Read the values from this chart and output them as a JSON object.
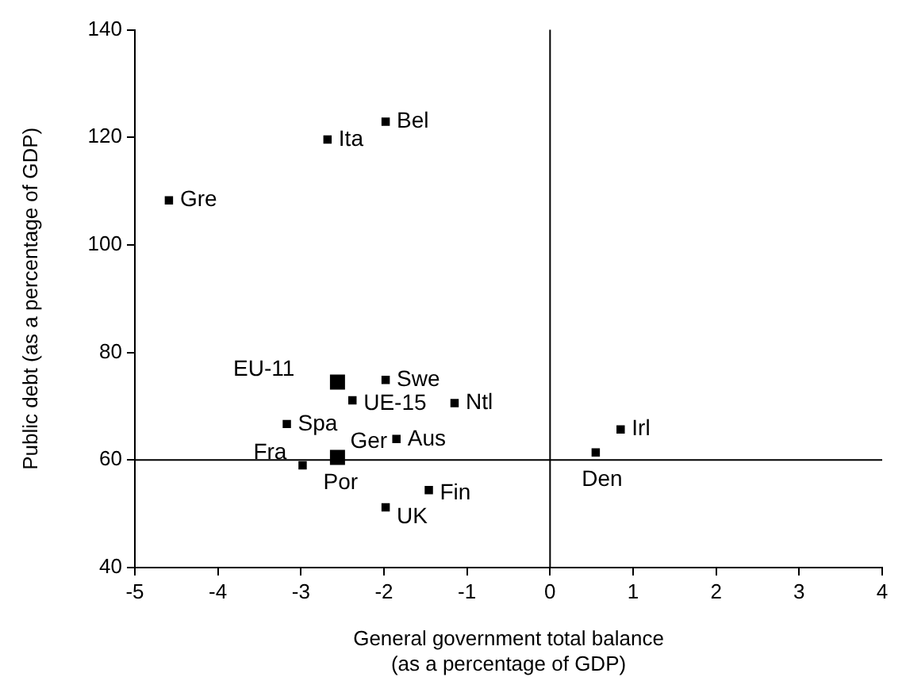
{
  "chart_data": {
    "type": "scatter",
    "xlabel": "General government total balance\n(as a percentage of GDP)",
    "ylabel": "Public debt (as a percentage of GDP)",
    "xlim": [
      -5,
      4
    ],
    "xticks": [
      -5,
      -4,
      -3,
      -2,
      -1,
      0,
      1,
      2,
      3,
      4
    ],
    "ylim": [
      40,
      140
    ],
    "yticks": [
      40,
      60,
      80,
      100,
      120,
      140
    ],
    "grid": false,
    "legend": false,
    "marker": "square",
    "series": [
      {
        "color": "#000000",
        "x": [
          -4.59,
          -2.68,
          -1.98,
          -1.98,
          -2.38,
          -1.15,
          -3.17,
          -1.85,
          -2.98,
          -1.46,
          -1.98,
          0.85,
          0.55
        ],
        "values": [
          108.3,
          119.6,
          122.9,
          74.9,
          71.1,
          70.6,
          66.7,
          63.9,
          59.0,
          54.4,
          51.2,
          65.7,
          61.4
        ]
      },
      {
        "color": "#000000",
        "x": [
          -2.56,
          -2.56
        ],
        "values": [
          74.5,
          60.5
        ]
      }
    ],
    "ref_lines": [
      {
        "axis": "x",
        "value": 0,
        "color": "#000000"
      },
      {
        "axis": "y",
        "value": 60,
        "color": "#000000"
      }
    ],
    "annotations": [
      {
        "text": "Gre",
        "x": -4.59,
        "y": 108.3
      },
      {
        "text": "Ita",
        "x": -2.68,
        "y": 119.6
      },
      {
        "text": "Bel",
        "x": -1.98,
        "y": 122.9
      },
      {
        "text": "EU-11",
        "x": -2.56,
        "y": 74.5
      },
      {
        "text": "Swe",
        "x": -1.98,
        "y": 74.9
      },
      {
        "text": "UE-15",
        "x": -2.38,
        "y": 71.1
      },
      {
        "text": "Ntl",
        "x": -1.15,
        "y": 70.6
      },
      {
        "text": "Spa",
        "x": -3.17,
        "y": 66.7
      },
      {
        "text": "Ger",
        "x": -2.56,
        "y": 60.5
      },
      {
        "text": "Aus",
        "x": -1.85,
        "y": 63.9
      },
      {
        "text": "Fra",
        "x": -2.98,
        "y": 59.0
      },
      {
        "text": "Por",
        "x": -2.56,
        "y": 60.5
      },
      {
        "text": "Fin",
        "x": -1.46,
        "y": 54.4
      },
      {
        "text": "UK",
        "x": -1.98,
        "y": 51.2
      },
      {
        "text": "Irl",
        "x": 0.85,
        "y": 65.7
      },
      {
        "text": "Den",
        "x": 0.55,
        "y": 61.4
      }
    ]
  }
}
